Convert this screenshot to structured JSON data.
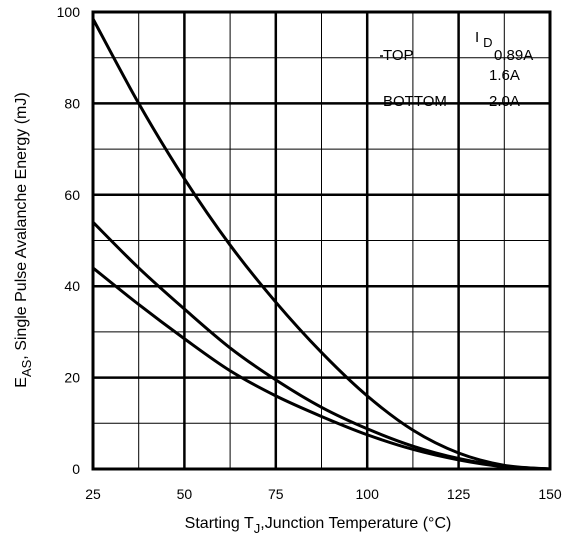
{
  "chart_data": {
    "type": "line",
    "title": "",
    "xlabel_parts": [
      "Starting T",
      "J",
      ",Junction Temperature (°C)"
    ],
    "ylabel_parts": [
      "E",
      "AS",
      ",  Single Pulse Avalanche Energy (mJ)"
    ],
    "xlim": [
      25,
      150
    ],
    "ylim": [
      0,
      100
    ],
    "xticks": [
      25,
      50,
      75,
      100,
      125,
      150
    ],
    "yticks": [
      0,
      20,
      40,
      60,
      80,
      100
    ],
    "grid": true,
    "legend": {
      "header": "I",
      "header_sub": "D",
      "rows": [
        {
          "label": "TOP",
          "value": "0.89A"
        },
        {
          "label": "",
          "value": "1.6A"
        },
        {
          "label": "BOTTOM",
          "value": "2.0A"
        }
      ]
    },
    "series": [
      {
        "x": [
          25,
          37.5,
          50,
          62.5,
          75,
          87.5,
          100,
          112.5,
          125,
          137.5,
          150
        ],
        "y": [
          98.5,
          80,
          63.5,
          49,
          36.5,
          25.5,
          16,
          8.5,
          3.5,
          0.8,
          0
        ]
      },
      {
        "x": [
          25,
          37.5,
          50,
          62.5,
          75,
          87.5,
          100,
          112.5,
          125,
          137.5,
          150
        ],
        "y": [
          54,
          44,
          35,
          26.5,
          19.5,
          13.5,
          8.8,
          5,
          2.3,
          0.6,
          0
        ]
      },
      {
        "x": [
          25,
          37.5,
          50,
          62.5,
          75,
          87.5,
          100,
          112.5,
          125,
          137.5,
          150
        ],
        "y": [
          44,
          36,
          28.5,
          21.5,
          16,
          11.5,
          7.5,
          4.3,
          2,
          0.5,
          0
        ]
      }
    ]
  }
}
